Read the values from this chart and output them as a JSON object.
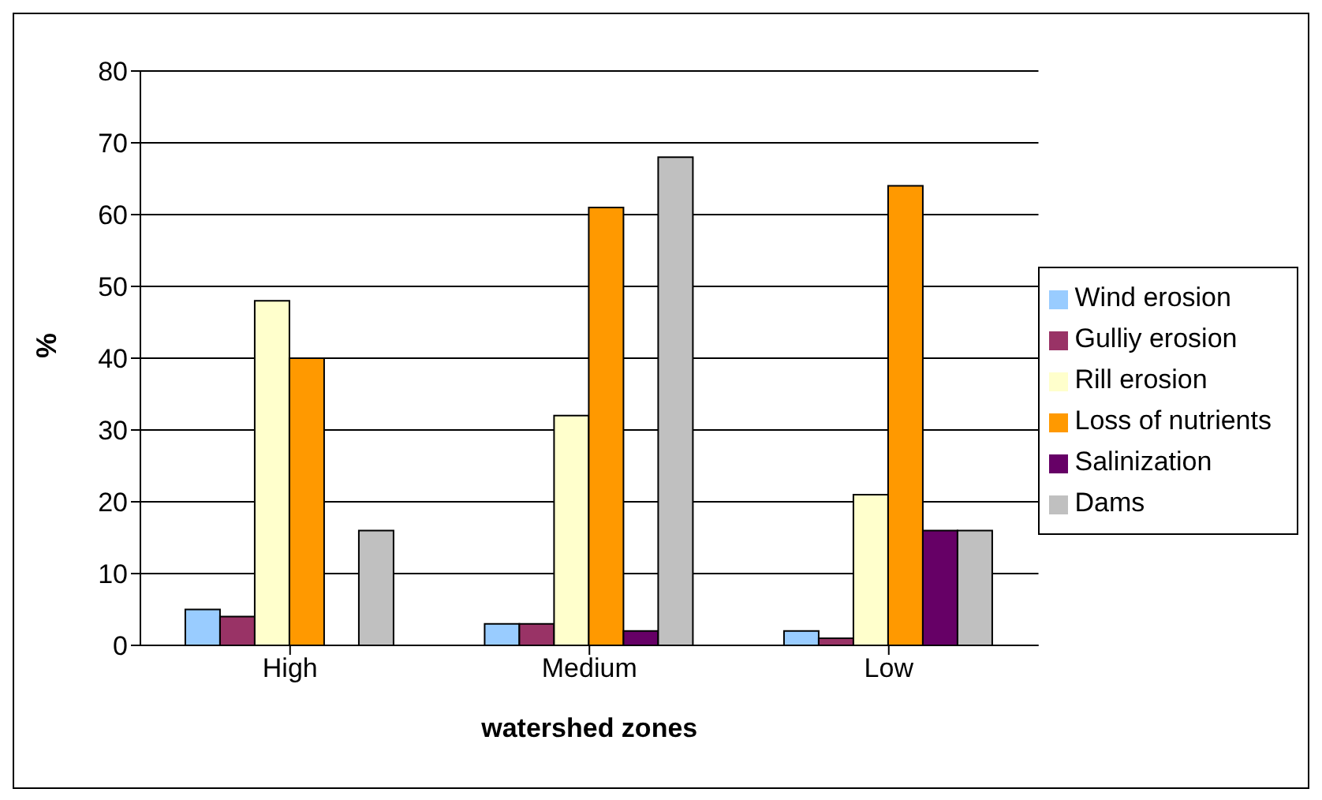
{
  "chart_data": {
    "type": "bar",
    "xlabel": "watershed zones",
    "ylabel": "%",
    "categories": [
      "High",
      "Medium",
      "Low"
    ],
    "series": [
      {
        "name": "Wind erosion",
        "color": "#99ccff",
        "values": [
          5,
          3,
          2
        ]
      },
      {
        "name": "Gulliy erosion",
        "color": "#993366",
        "values": [
          4,
          3,
          1
        ]
      },
      {
        "name": "Rill erosion",
        "color": "#ffffcc",
        "values": [
          48,
          32,
          21
        ]
      },
      {
        "name": "Loss of nutrients",
        "color": "#ff9900",
        "values": [
          40,
          61,
          64
        ]
      },
      {
        "name": "Salinization",
        "color": "#660066",
        "values": [
          0,
          2,
          16
        ]
      },
      {
        "name": "Dams",
        "color": "#c0c0c0",
        "values": [
          16,
          68,
          16
        ]
      }
    ],
    "ylim": [
      0,
      80
    ],
    "yticks": [
      0,
      10,
      20,
      30,
      40,
      50,
      60,
      70,
      80
    ],
    "grid": "y",
    "legend": "right"
  }
}
